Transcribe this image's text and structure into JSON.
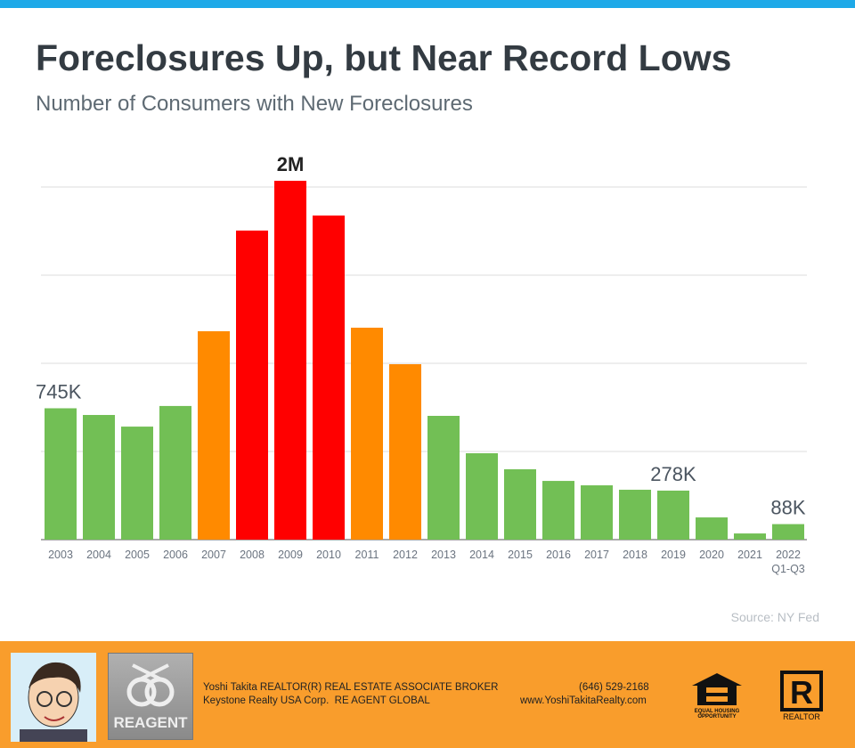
{
  "chart_data": {
    "type": "bar",
    "title": "Foreclosures Up, but Near Record Lows",
    "subtitle": "Number of Consumers with New Foreclosures",
    "categories": [
      "2003",
      "2004",
      "2005",
      "2006",
      "2007",
      "2008",
      "2009",
      "2010",
      "2011",
      "2012",
      "2013",
      "2014",
      "2015",
      "2016",
      "2017",
      "2018",
      "2019",
      "2020",
      "2021",
      "2022 Q1-Q3"
    ],
    "values": [
      745000,
      707000,
      641000,
      758000,
      1182000,
      1753000,
      2035000,
      1838000,
      1202000,
      995000,
      702000,
      490000,
      399000,
      333000,
      308000,
      283000,
      278000,
      126000,
      35000,
      88000
    ],
    "value_labels": [
      "745K",
      null,
      null,
      null,
      null,
      null,
      "2M",
      null,
      null,
      null,
      null,
      null,
      null,
      null,
      null,
      null,
      "278K",
      null,
      null,
      "88K"
    ],
    "colors": [
      "#72bf55",
      "#72bf55",
      "#72bf55",
      "#72bf55",
      "#ff8a00",
      "#ff0000",
      "#ff0000",
      "#ff0000",
      "#ff8a00",
      "#ff8a00",
      "#72bf55",
      "#72bf55",
      "#72bf55",
      "#72bf55",
      "#72bf55",
      "#72bf55",
      "#72bf55",
      "#72bf55",
      "#72bf55",
      "#72bf55"
    ],
    "ylim": [
      0,
      2000000
    ],
    "yticks": [
      500000,
      1000000,
      1500000,
      2000000
    ],
    "grid": true,
    "source": "Source: NY Fed"
  },
  "footer": {
    "agent": "Yoshi Takita REALTOR(R) REAL ESTATE ASSOCIATE BROKER",
    "company": "Keystone Realty USA Corp.  RE AGENT GLOBAL",
    "phone": "(646) 529-2168",
    "website": "www.YoshiTakitaRealty.com",
    "logo": "REAGENT",
    "equal_housing": "EQUAL HOUSING OPPORTUNITY",
    "realtor": "REALTOR"
  }
}
